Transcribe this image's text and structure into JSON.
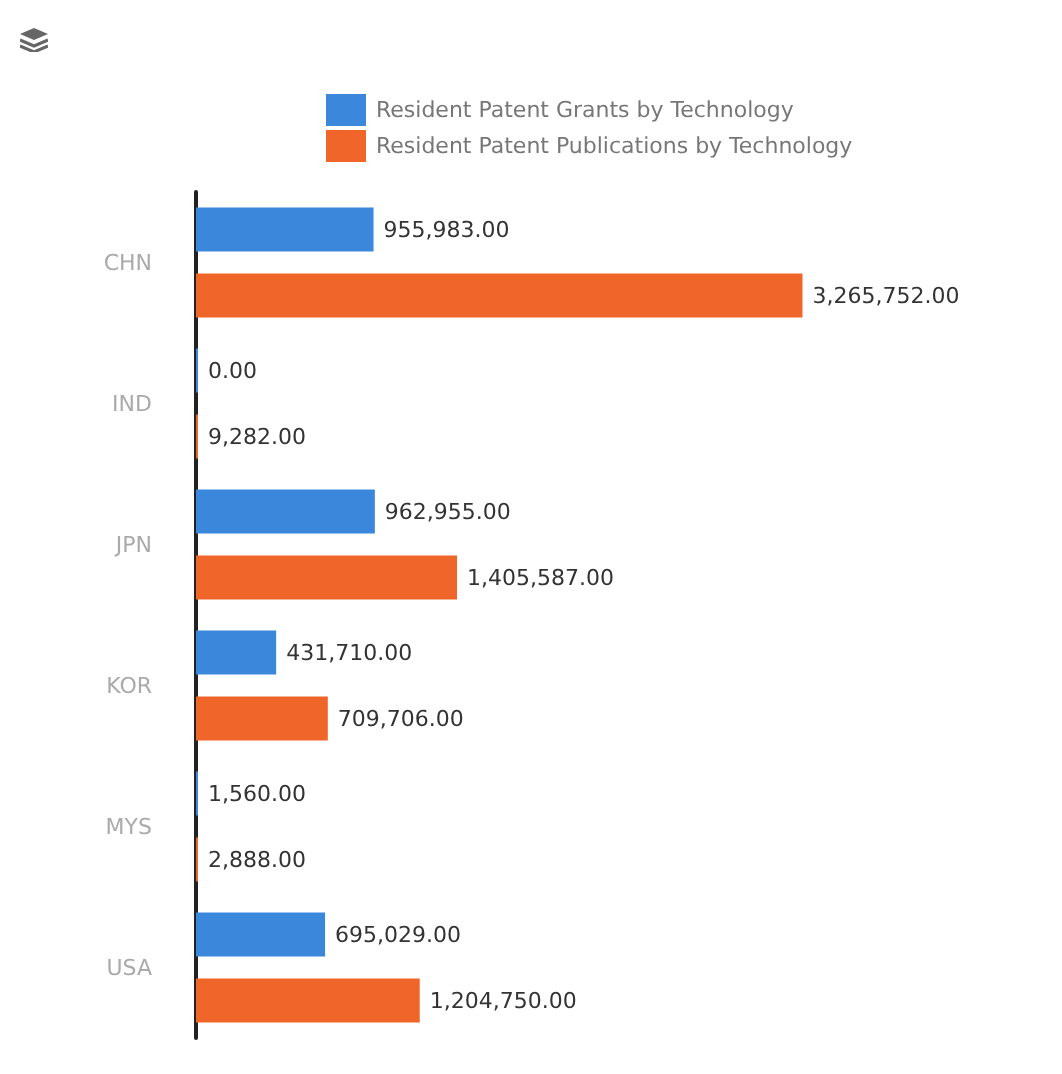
{
  "chart_data": {
    "type": "bar",
    "orientation": "horizontal",
    "categories": [
      "CHN",
      "IND",
      "JPN",
      "KOR",
      "MYS",
      "USA"
    ],
    "series": [
      {
        "name": "Resident Patent Grants by Technology",
        "color": "#3a87dc",
        "values": [
          955983,
          0,
          962955,
          431710,
          1560,
          695029
        ],
        "value_labels": [
          "955,983.00",
          "0.00",
          "962,955.00",
          "431,710.00",
          "1,560.00",
          "695,029.00"
        ]
      },
      {
        "name": "Resident Patent Publications by Technology",
        "color": "#f0662a",
        "values": [
          3265752,
          9282,
          1405587,
          709706,
          2888,
          1204750
        ],
        "value_labels": [
          "3,265,752.00",
          "9,282.00",
          "1,405,587.00",
          "709,706.00",
          "2,888.00",
          "1,204,750.00"
        ]
      }
    ],
    "legend": "top"
  }
}
